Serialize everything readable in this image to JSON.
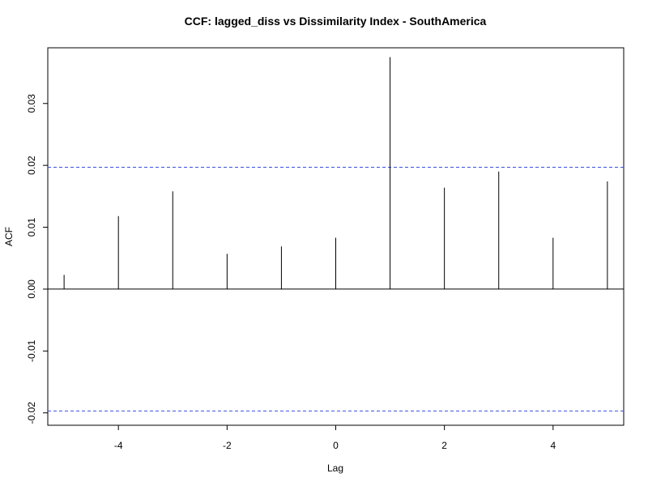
{
  "chart_data": {
    "type": "bar",
    "title": "CCF: lagged_diss vs Dissimilarity Index - SouthAmerica",
    "xlabel": "Lag",
    "ylabel": "ACF",
    "x": [
      -5,
      -4,
      -3,
      -2,
      -1,
      0,
      1,
      2,
      3,
      4,
      5
    ],
    "values": [
      0.0023,
      0.0118,
      0.0158,
      0.0057,
      0.0069,
      0.0083,
      0.0375,
      0.0164,
      0.019,
      0.0083,
      0.0174
    ],
    "xlim": [
      -5.3,
      5.3
    ],
    "ylim": [
      -0.022,
      0.039
    ],
    "xticks": [
      -4,
      -2,
      0,
      2,
      4
    ],
    "xtick_labels": [
      "-4",
      "-2",
      "0",
      "2",
      "4"
    ],
    "yticks": [
      -0.02,
      -0.01,
      0.0,
      0.01,
      0.02,
      0.03
    ],
    "ytick_labels": [
      "-0.02",
      "-0.01",
      "0.00",
      "0.01",
      "0.02",
      "0.03"
    ],
    "confidence_bounds": [
      0.0197,
      -0.0197
    ],
    "zero_line": 0,
    "grid": false,
    "colors": {
      "bars": "#000000",
      "confidence_lines": "#3b4fe0",
      "axes": "#000000"
    }
  }
}
